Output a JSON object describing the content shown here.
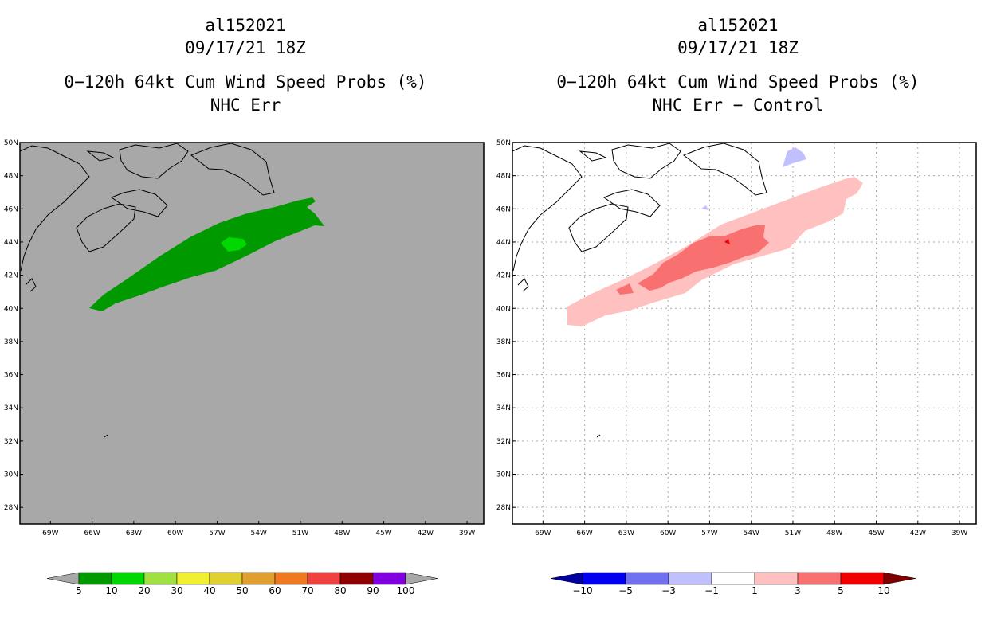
{
  "left_panel": {
    "storm_id": "al152021",
    "datetime": "09/17/21 18Z",
    "product": "0−120h 64kt Cum Wind Speed Probs (%)",
    "subtitle": "NHC Err",
    "background_color": "#a8a8a8"
  },
  "right_panel": {
    "storm_id": "al152021",
    "datetime": "09/17/21 18Z",
    "product": "0−120h 64kt Cum Wind Speed Probs (%)",
    "subtitle": "NHC Err − Control",
    "background_color": "#ffffff"
  },
  "map": {
    "lat_labels": [
      "50N",
      "48N",
      "46N",
      "44N",
      "42N",
      "40N",
      "38N",
      "36N",
      "34N",
      "32N",
      "30N",
      "28N"
    ],
    "lon_labels": [
      "69W",
      "66W",
      "63W",
      "60W",
      "57W",
      "54W",
      "51W",
      "48W",
      "45W",
      "42W",
      "39W"
    ],
    "lat_values": [
      50,
      48,
      46,
      44,
      42,
      40,
      38,
      36,
      34,
      32,
      30,
      28
    ],
    "lon_values": [
      -69,
      -66,
      -63,
      -60,
      -57,
      -54,
      -51,
      -48,
      -45,
      -42,
      -39
    ],
    "extent": {
      "lon_min": -71.2,
      "lon_max": -37.8,
      "lat_min": 27.0,
      "lat_max": 50.0
    }
  },
  "left_colorbar": {
    "labels": [
      "5",
      "10",
      "20",
      "30",
      "40",
      "50",
      "60",
      "70",
      "80",
      "90",
      "100"
    ],
    "colors": [
      "#009a00",
      "#00d800",
      "#a0e040",
      "#f0f030",
      "#e0d030",
      "#e0a030",
      "#f07820",
      "#f04040",
      "#900000",
      "#8000e0"
    ],
    "end_color": "#a8a8a8"
  },
  "right_colorbar": {
    "labels": [
      "−10",
      "−5",
      "−3",
      "−1",
      "1",
      "3",
      "5",
      "10"
    ],
    "colors": [
      "#0000f0",
      "#7070f0",
      "#c0c0ff",
      "#ffffff",
      "#ffc0c0",
      "#f87070",
      "#f00000"
    ],
    "low_end_color": "#0000a0",
    "high_end_color": "#800000"
  }
}
